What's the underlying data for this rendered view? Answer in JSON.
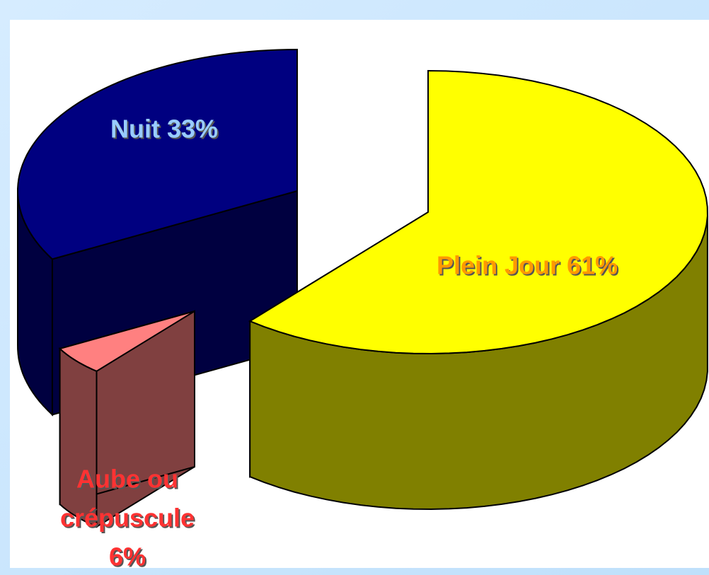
{
  "chart_data": {
    "type": "pie3d",
    "values": [
      61,
      6,
      33
    ],
    "value_labels": [
      "Plein Jour 61%",
      [
        "Aube ou",
        "crépuscule",
        "6%"
      ],
      "Nuit 33%"
    ],
    "colors": [
      "#ffff00",
      "#ff8080",
      "#000080"
    ],
    "side_colors": [
      "#808000",
      "#804040",
      "#000040"
    ],
    "label_colors": [
      "#ff9900",
      "#ff3333",
      "#99ccff"
    ]
  }
}
